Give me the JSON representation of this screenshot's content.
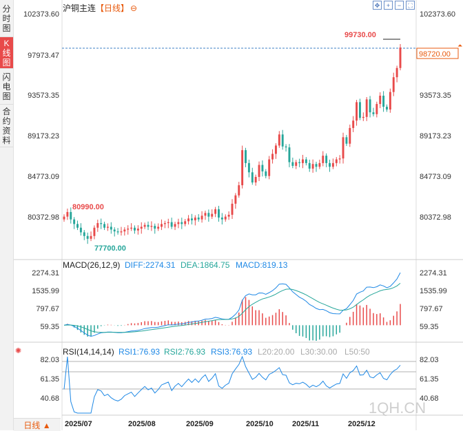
{
  "sidebar": {
    "tabs": [
      {
        "label": "分时图",
        "active": false
      },
      {
        "label": "K线图",
        "active": true
      },
      {
        "label": "闪电图",
        "active": false
      },
      {
        "label": "合约资料",
        "active": false
      }
    ]
  },
  "header": {
    "title": "沪铜主连",
    "period_tag": "【日线】",
    "settings_glyph": "⊖"
  },
  "period_button": {
    "label": "日线 ▲"
  },
  "watermark": "1QH.CN",
  "colors": {
    "up": "#e84a4a",
    "down": "#26a69a",
    "diff": "#1e88e5",
    "dea": "#26a69a",
    "last_price": "#e8590c"
  },
  "chart_data": [
    {
      "type": "candlestick",
      "title": "沪铜主连",
      "y_axis_labels": [
        "102373.60",
        "97973.47",
        "93573.35",
        "89173.23",
        "84773.09",
        "80372.98"
      ],
      "ylim": [
        78000,
        102373.6
      ],
      "x_tick_labels": [
        "2025/07",
        "2025/08",
        "2025/09",
        "2025/10",
        "2025/11",
        "2025/12"
      ],
      "last_price_label": "98720.00",
      "annotations": {
        "high": "99730.00",
        "low": "77700.00",
        "start_high": "80990.00"
      },
      "close_series": [
        80400,
        80900,
        80100,
        79600,
        79200,
        78700,
        78300,
        78000,
        78300,
        79200,
        79700,
        79600,
        79200,
        79300,
        79000,
        78800,
        78700,
        78800,
        79000,
        79100,
        79200,
        78900,
        79100,
        79300,
        79500,
        79300,
        79400,
        79100,
        79300,
        79600,
        79700,
        79800,
        79300,
        79600,
        79800,
        79600,
        79900,
        80200,
        80000,
        80300,
        80100,
        80500,
        80800,
        80400,
        80700,
        81200,
        80300,
        80100,
        80400,
        80600,
        81800,
        82700,
        83800,
        87600,
        86200,
        85200,
        84100,
        84700,
        86000,
        85300,
        84800,
        86600,
        87200,
        88100,
        89300,
        88000,
        87900,
        86300,
        85900,
        86300,
        86200,
        86600,
        86200,
        85600,
        86100,
        85800,
        86200,
        87000,
        86200,
        85800,
        86200,
        86600,
        86700,
        89000,
        88300,
        90000,
        90800,
        92800,
        91100,
        91200,
        93100,
        91700,
        91500,
        92600,
        93500,
        92300,
        92000,
        93900,
        95500,
        96500,
        98720
      ]
    },
    {
      "type": "line",
      "title": "MACD(26,12,9)",
      "series_labels": [
        "DIFF:2274.31",
        "DEA:1864.75",
        "MACD:819.13"
      ],
      "y_axis_labels": [
        "2274.31",
        "1535.99",
        "797.67",
        "59.35"
      ]
    },
    {
      "type": "line",
      "title": "RSI(14,14,14)",
      "series_labels": [
        "RSI1:76.93",
        "RSI2:76.93",
        "RSI3:76.93"
      ],
      "level_labels": [
        "L20:20.00",
        "L30:30.00",
        "L50:50"
      ],
      "y_axis_labels": [
        "82.03",
        "61.35",
        "40.68"
      ]
    }
  ]
}
